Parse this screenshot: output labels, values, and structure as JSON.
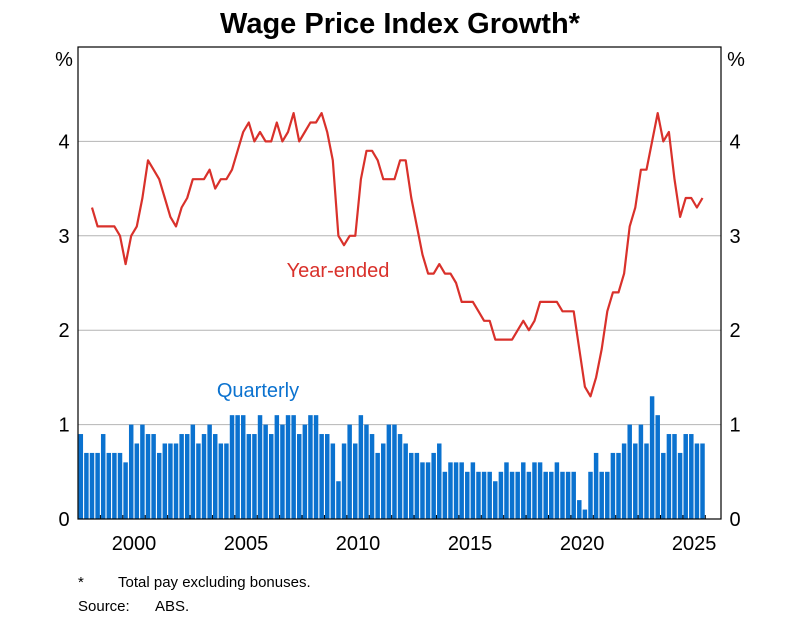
{
  "chart_data": {
    "type": "bar+line",
    "title": "Wage Price Index Growth*",
    "ylabel_left": "%",
    "ylabel_right": "%",
    "ylim": [
      0,
      5
    ],
    "yticks": [
      0,
      1,
      2,
      3,
      4
    ],
    "xlim": [
      1998,
      2026.7
    ],
    "xtick_labels": [
      "2000",
      "2005",
      "2010",
      "2015",
      "2020",
      "2025"
    ],
    "grid": "horizontal",
    "frequency": "quarterly",
    "series": [
      {
        "name": "Quarterly",
        "kind": "bar",
        "color": "#0b72cf",
        "start": "1998-Q1",
        "values": [
          0.9,
          0.7,
          0.7,
          0.7,
          0.9,
          0.7,
          0.7,
          0.7,
          0.6,
          1.0,
          0.8,
          1.0,
          0.9,
          0.9,
          0.7,
          0.8,
          0.8,
          0.8,
          0.9,
          0.9,
          1.0,
          0.8,
          0.9,
          1.0,
          0.9,
          0.8,
          0.8,
          1.1,
          1.1,
          1.1,
          0.9,
          0.9,
          1.1,
          1.0,
          0.9,
          1.1,
          1.0,
          1.1,
          1.1,
          0.9,
          1.0,
          1.1,
          1.1,
          0.9,
          0.9,
          0.8,
          0.4,
          0.8,
          1.0,
          0.8,
          1.1,
          1.0,
          0.9,
          0.7,
          0.8,
          1.0,
          1.0,
          0.9,
          0.8,
          0.7,
          0.7,
          0.6,
          0.6,
          0.7,
          0.8,
          0.5,
          0.6,
          0.6,
          0.6,
          0.5,
          0.6,
          0.5,
          0.5,
          0.5,
          0.4,
          0.5,
          0.6,
          0.5,
          0.5,
          0.6,
          0.5,
          0.6,
          0.6,
          0.5,
          0.5,
          0.6,
          0.5,
          0.5,
          0.5,
          0.2,
          0.1,
          0.5,
          0.7,
          0.5,
          0.5,
          0.7,
          0.7,
          0.8,
          1.0,
          0.8,
          1.0,
          0.8,
          1.3,
          1.1,
          0.7,
          0.9,
          0.9,
          0.7,
          0.9,
          0.9,
          0.8,
          0.8
        ]
      },
      {
        "name": "Year-ended",
        "kind": "line",
        "color": "#d9312b",
        "start": "1998-Q3",
        "values": [
          3.3,
          3.1,
          3.1,
          3.1,
          3.1,
          3.0,
          2.7,
          3.0,
          3.1,
          3.4,
          3.8,
          3.7,
          3.6,
          3.4,
          3.2,
          3.1,
          3.3,
          3.4,
          3.6,
          3.6,
          3.6,
          3.7,
          3.5,
          3.6,
          3.6,
          3.7,
          3.9,
          4.1,
          4.2,
          4.0,
          4.1,
          4.0,
          4.0,
          4.2,
          4.0,
          4.1,
          4.3,
          4.0,
          4.1,
          4.2,
          4.2,
          4.3,
          4.1,
          3.8,
          3.0,
          2.9,
          3.0,
          3.0,
          3.6,
          3.9,
          3.9,
          3.8,
          3.6,
          3.6,
          3.6,
          3.8,
          3.8,
          3.4,
          3.1,
          2.8,
          2.6,
          2.6,
          2.7,
          2.6,
          2.6,
          2.5,
          2.3,
          2.3,
          2.3,
          2.2,
          2.1,
          2.1,
          1.9,
          1.9,
          1.9,
          1.9,
          2.0,
          2.1,
          2.0,
          2.1,
          2.3,
          2.3,
          2.3,
          2.3,
          2.2,
          2.2,
          2.2,
          1.8,
          1.4,
          1.3,
          1.5,
          1.8,
          2.2,
          2.4,
          2.4,
          2.6,
          3.1,
          3.3,
          3.7,
          3.7,
          4.0,
          4.3,
          4.0,
          4.1,
          3.6,
          3.2,
          3.4,
          3.4,
          3.3,
          3.4
        ]
      }
    ],
    "footnote_marker": "*",
    "footnote_text": "Total pay excluding bonuses.",
    "source_label": "Source:",
    "source_text": "ABS."
  }
}
